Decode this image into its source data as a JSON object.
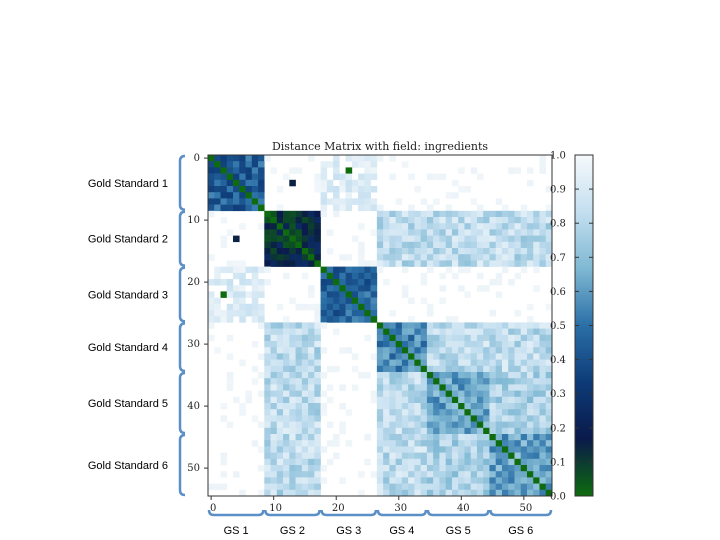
{
  "chart_data": {
    "type": "heatmap",
    "title": "Distance Matrix with field: ingredients",
    "n": 55,
    "x_ticks": [
      0,
      10,
      20,
      30,
      40,
      50
    ],
    "y_ticks": [
      0,
      10,
      20,
      30,
      40,
      50
    ],
    "colorbar": {
      "min": 0.0,
      "max": 1.0,
      "ticks": [
        "0.0",
        "0.1",
        "0.2",
        "0.3",
        "0.4",
        "0.5",
        "0.6",
        "0.7",
        "0.8",
        "0.9",
        "1.0"
      ]
    },
    "colormap": [
      "#0e6b0e",
      "#0a1a4a",
      "#0d3b78",
      "#2a6fa6",
      "#7fb8d3",
      "#c4dff0",
      "#f6f9fb"
    ],
    "groups": [
      {
        "name": "Gold Standard 1",
        "short": "GS 1",
        "start": 0,
        "end": 8
      },
      {
        "name": "Gold Standard 2",
        "short": "GS 2",
        "start": 9,
        "end": 17
      },
      {
        "name": "Gold Standard 3",
        "short": "GS 3",
        "start": 18,
        "end": 26
      },
      {
        "name": "Gold Standard 4",
        "short": "GS 4",
        "start": 27,
        "end": 34
      },
      {
        "name": "Gold Standard 5",
        "short": "GS 5",
        "start": 35,
        "end": 44
      },
      {
        "name": "Gold Standard 6",
        "short": "GS 6",
        "start": 45,
        "end": 54
      }
    ],
    "block_distance": [
      [
        0.45,
        1.0,
        0.95,
        1.0,
        1.0,
        1.0
      ],
      [
        1.0,
        0.15,
        1.0,
        0.82,
        0.82,
        0.82
      ],
      [
        0.95,
        1.0,
        0.45,
        1.0,
        1.0,
        1.0
      ],
      [
        1.0,
        0.82,
        1.0,
        0.55,
        0.82,
        0.82
      ],
      [
        1.0,
        0.82,
        1.0,
        0.82,
        0.62,
        0.78
      ],
      [
        1.0,
        0.82,
        1.0,
        0.82,
        0.78,
        0.62
      ]
    ],
    "outliers": [
      [
        2,
        22,
        0.0
      ],
      [
        13,
        4,
        0.15
      ]
    ]
  }
}
